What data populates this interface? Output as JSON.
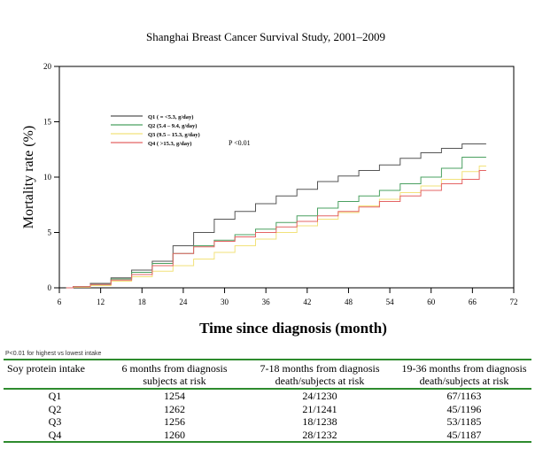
{
  "chart_data": {
    "type": "line",
    "title": "Shanghai Breast Cancer Survival Study, 2001–2009",
    "xlabel": "Time since diagnosis (month)",
    "ylabel": "Mortality rate (%)",
    "xlim": [
      6,
      72
    ],
    "ylim": [
      0,
      20
    ],
    "xticks": [
      6,
      12,
      18,
      24,
      30,
      36,
      42,
      48,
      54,
      60,
      66,
      72
    ],
    "yticks": [
      0,
      5,
      10,
      15,
      20
    ],
    "annotation": "P <0.01",
    "legend_position": "upper-left",
    "series": [
      {
        "name": "Q1  ( = <5.3,  g/day)",
        "color": "#555555",
        "x": [
          7,
          9,
          12,
          15,
          18,
          21,
          24,
          27,
          30,
          33,
          36,
          39,
          42,
          45,
          48,
          51,
          54,
          57,
          60,
          63,
          66,
          68
        ],
        "y": [
          0,
          0.1,
          0.4,
          0.9,
          1.6,
          2.4,
          3.8,
          5.0,
          6.2,
          6.9,
          7.6,
          8.3,
          8.9,
          9.6,
          10.1,
          10.6,
          11.1,
          11.7,
          12.2,
          12.6,
          13.0,
          13.0
        ]
      },
      {
        "name": "Q2  (5.4 – 9.4,  g/day)",
        "color": "#4aa060",
        "x": [
          7,
          9,
          12,
          15,
          18,
          21,
          24,
          27,
          30,
          33,
          36,
          39,
          42,
          45,
          48,
          51,
          54,
          57,
          60,
          63,
          66,
          68
        ],
        "y": [
          0,
          0.1,
          0.3,
          0.8,
          1.4,
          2.2,
          3.1,
          3.8,
          4.3,
          4.8,
          5.3,
          5.9,
          6.5,
          7.2,
          7.8,
          8.3,
          8.8,
          9.4,
          10.0,
          10.8,
          11.8,
          11.8
        ]
      },
      {
        "name": "Q3  (9.5 – 15.3,  g/day)",
        "color": "#f2e27a",
        "x": [
          7,
          9,
          12,
          15,
          18,
          21,
          24,
          27,
          30,
          33,
          36,
          39,
          42,
          45,
          48,
          51,
          54,
          57,
          60,
          63,
          66,
          68
        ],
        "y": [
          0,
          0.05,
          0.2,
          0.6,
          1.0,
          1.5,
          2.0,
          2.6,
          3.2,
          3.8,
          4.4,
          5.0,
          5.6,
          6.2,
          6.8,
          7.4,
          8.0,
          8.6,
          9.2,
          9.8,
          10.5,
          11.0
        ]
      },
      {
        "name": "Q4  ( >15.3,  g/day)",
        "color": "#e46464",
        "x": [
          7,
          9,
          12,
          15,
          18,
          21,
          24,
          27,
          30,
          33,
          36,
          39,
          42,
          45,
          48,
          51,
          54,
          57,
          60,
          63,
          66,
          68
        ],
        "y": [
          0,
          0.1,
          0.3,
          0.7,
          1.2,
          2.0,
          3.1,
          3.7,
          4.2,
          4.6,
          5.0,
          5.5,
          6.0,
          6.5,
          6.9,
          7.3,
          7.8,
          8.3,
          8.8,
          9.4,
          9.8,
          10.6
        ]
      }
    ]
  },
  "footnote": "P<0.01 for highest vs lowest intake",
  "risk_table": {
    "headers": [
      "Soy protein intake",
      "6 months from diagnosis subjects at risk",
      "7-18 months from diagnosis death/subjects at risk",
      "19-36 months from diagnosis death/subjects at risk"
    ],
    "rows": [
      [
        "Q1",
        "1254",
        "24/1230",
        "67/1163"
      ],
      [
        "Q2",
        "1262",
        "21/1241",
        "45/1196"
      ],
      [
        "Q3",
        "1256",
        "18/1238",
        "53/1185"
      ],
      [
        "Q4",
        "1260",
        "28/1232",
        "45/1187"
      ]
    ]
  }
}
